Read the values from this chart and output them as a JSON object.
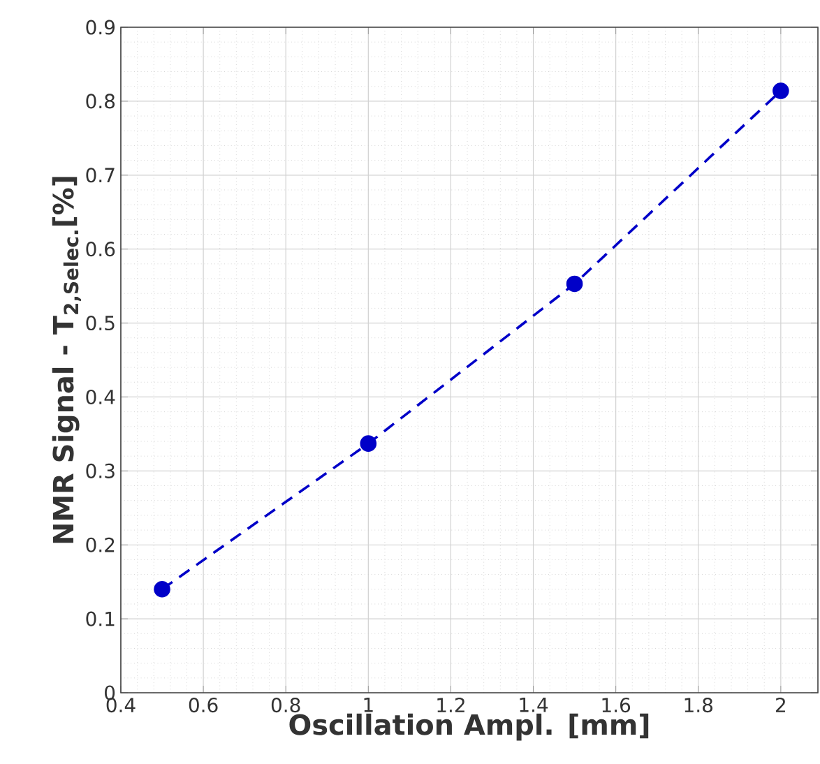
{
  "chart_data": {
    "type": "line",
    "xlabel": "Oscillation Ampl. [mm]",
    "ylabel": "NMR Signal - T$_{2,Selec.}$[%]",
    "x": [
      0.5,
      1,
      1.5,
      2
    ],
    "series": [
      {
        "color": "#0000c8",
        "values": [
          0.14,
          0.337,
          0.553,
          0.814
        ]
      }
    ],
    "xlim": [
      0.4,
      2.09
    ],
    "ylim": [
      0,
      0.9
    ],
    "xticks": [
      0.4,
      0.6,
      0.8,
      1,
      1.2,
      1.4,
      1.6,
      1.8,
      2
    ],
    "yticks": [
      0,
      0.1,
      0.2,
      0.3,
      0.4,
      0.5,
      0.6,
      0.7,
      0.8,
      0.9
    ],
    "grid": true,
    "marker": "circle",
    "line_style": "dashed"
  }
}
